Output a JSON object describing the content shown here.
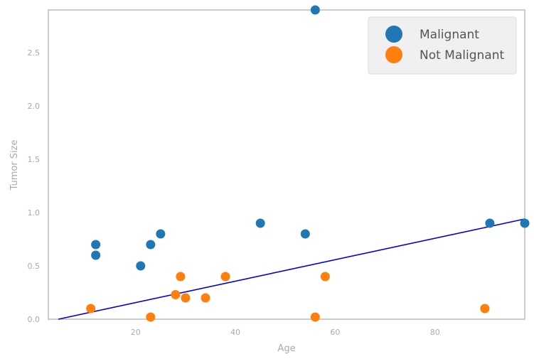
{
  "chart_data": {
    "type": "scatter",
    "xlabel": "Age",
    "ylabel": "Tumor Size",
    "xlim": [
      2.5,
      98
    ],
    "ylim": [
      0,
      2.9
    ],
    "x_ticks": [
      20,
      40,
      60,
      80
    ],
    "x_tick_labels": [
      "20",
      "40",
      "60",
      "80"
    ],
    "y_ticks": [
      0.0,
      0.5,
      1.0,
      1.5,
      2.0,
      2.5
    ],
    "y_tick_labels": [
      "0.0",
      "0.5",
      "1.0",
      "1.5",
      "2.0",
      "2.5"
    ],
    "grid": false,
    "legend_position": "top-right",
    "series": [
      {
        "name": "Malignant",
        "color": "#1f77b4",
        "points": [
          {
            "x": 12,
            "y": 0.7
          },
          {
            "x": 12,
            "y": 0.6
          },
          {
            "x": 21,
            "y": 0.5
          },
          {
            "x": 23,
            "y": 0.7
          },
          {
            "x": 25,
            "y": 0.8
          },
          {
            "x": 45,
            "y": 0.9
          },
          {
            "x": 54,
            "y": 0.8
          },
          {
            "x": 56,
            "y": 2.9
          },
          {
            "x": 91,
            "y": 0.9
          },
          {
            "x": 98,
            "y": 0.9
          }
        ]
      },
      {
        "name": "Not Malignant",
        "color": "#ff7f0e",
        "points": [
          {
            "x": 11,
            "y": 0.1
          },
          {
            "x": 23,
            "y": 0.02
          },
          {
            "x": 28,
            "y": 0.23
          },
          {
            "x": 29,
            "y": 0.4
          },
          {
            "x": 30,
            "y": 0.2
          },
          {
            "x": 34,
            "y": 0.2
          },
          {
            "x": 38,
            "y": 0.4
          },
          {
            "x": 56,
            "y": 0.02
          },
          {
            "x": 58,
            "y": 0.4
          },
          {
            "x": 90,
            "y": 0.1
          }
        ]
      }
    ],
    "fit_line": {
      "color": "#0000dd",
      "points": [
        {
          "x": 4.5,
          "y": 0.0
        },
        {
          "x": 98,
          "y": 0.94
        }
      ]
    }
  }
}
